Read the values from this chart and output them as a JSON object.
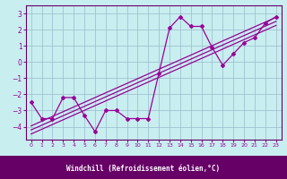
{
  "xlabel": "Windchill (Refroidissement éolien,°C)",
  "bg_color": "#c8eef0",
  "plot_bg": "#c8eef0",
  "xlabel_bg": "#660066",
  "grid_color": "#99bbcc",
  "line_color": "#990099",
  "spine_color": "#660066",
  "x_data": [
    0,
    1,
    2,
    3,
    4,
    5,
    6,
    7,
    8,
    9,
    10,
    11,
    12,
    13,
    14,
    15,
    16,
    17,
    18,
    19,
    20,
    21,
    22,
    23
  ],
  "y_main": [
    -2.5,
    -3.5,
    -3.5,
    -2.2,
    -2.2,
    -3.3,
    -4.3,
    -3.0,
    -3.0,
    -3.5,
    -3.5,
    -3.5,
    -0.7,
    2.1,
    2.8,
    2.2,
    2.2,
    0.9,
    -0.2,
    0.5,
    1.2,
    1.5,
    2.4,
    2.8
  ],
  "ylim": [
    -4.8,
    3.5
  ],
  "xlim": [
    -0.5,
    23.5
  ],
  "yticks": [
    -4,
    -3,
    -2,
    -1,
    0,
    1,
    2,
    3
  ],
  "xticks": [
    0,
    1,
    2,
    3,
    4,
    5,
    6,
    7,
    8,
    9,
    10,
    11,
    12,
    13,
    14,
    15,
    16,
    17,
    18,
    19,
    20,
    21,
    22,
    23
  ],
  "reg_offsets": [
    -0.25,
    0.0,
    0.25
  ],
  "reg_x_start": 0,
  "reg_x_end": 23
}
